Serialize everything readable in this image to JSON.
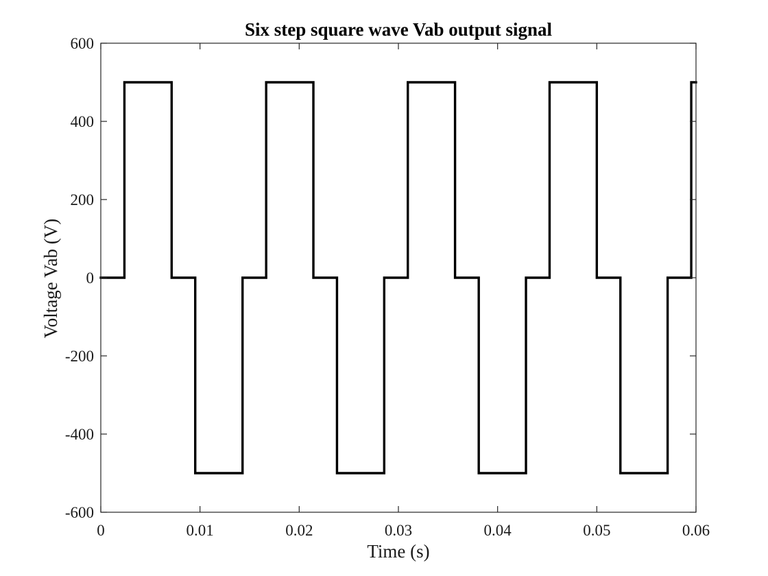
{
  "chart_data": {
    "type": "line",
    "title": "Six step square wave Vab output signal",
    "xlabel": "Time (s)",
    "ylabel": "Voltage Vab (V)",
    "xlim": [
      0,
      0.06
    ],
    "ylim": [
      -600,
      600
    ],
    "x_ticks": [
      0,
      0.01,
      0.02,
      0.03,
      0.04,
      0.05,
      0.06
    ],
    "x_tick_labels": [
      "0",
      "0.01",
      "0.02",
      "0.03",
      "0.04",
      "0.05",
      "0.06"
    ],
    "y_ticks": [
      -600,
      -400,
      -200,
      0,
      200,
      400,
      600
    ],
    "y_tick_labels": [
      "-600",
      "-400",
      "-200",
      "0",
      "200",
      "400",
      "600"
    ],
    "grid": false,
    "series": [
      {
        "color": "#000000",
        "x": [
          0,
          0.00238,
          0.00238,
          0.00714,
          0.00714,
          0.00952,
          0.00952,
          0.01429,
          0.01429,
          0.01667,
          0.01667,
          0.02143,
          0.02143,
          0.02381,
          0.02381,
          0.02857,
          0.02857,
          0.03095,
          0.03095,
          0.03571,
          0.03571,
          0.0381,
          0.0381,
          0.04286,
          0.04286,
          0.04524,
          0.04524,
          0.05,
          0.05,
          0.05238,
          0.05238,
          0.05714,
          0.05714,
          0.05952,
          0.05952,
          0.06
        ],
        "y": [
          0,
          0,
          500,
          500,
          0,
          0,
          -500,
          -500,
          0,
          0,
          500,
          500,
          0,
          0,
          -500,
          -500,
          0,
          0,
          500,
          500,
          0,
          0,
          -500,
          -500,
          0,
          0,
          500,
          500,
          0,
          0,
          -500,
          -500,
          0,
          0,
          500,
          500
        ]
      }
    ]
  }
}
